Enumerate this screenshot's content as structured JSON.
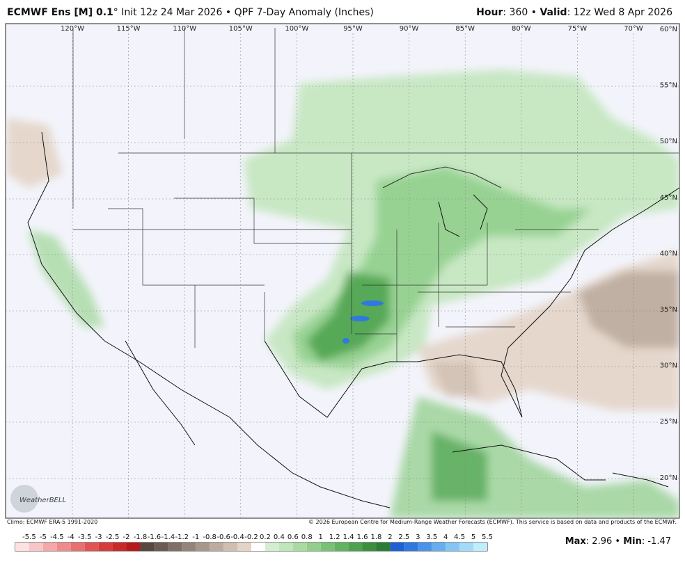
{
  "header": {
    "left_bold": "ECMWF Ens [M] 0.1",
    "left_rest": "° Init 12z 24 Mar 2026 • QPF 7-Day Anomaly (Inches)",
    "right_parts": [
      "Hour",
      ": 360 • ",
      "Valid",
      ": 12z Wed 8 Apr 2026"
    ]
  },
  "map": {
    "longitudes": [
      "120°W",
      "115°W",
      "110°W",
      "105°W",
      "100°W",
      "95°W",
      "90°W",
      "85°W",
      "80°W",
      "75°W",
      "70°W"
    ],
    "latitudes": [
      "60°N",
      "55°N",
      "50°N",
      "45°N",
      "40°N",
      "35°N",
      "30°N",
      "25°N",
      "20°N"
    ],
    "logo": "WeatherBELL"
  },
  "footer": {
    "climo": "Climo: ECMWF ERA-5 1991-2020",
    "copyright": "© 2026 European Centre for Medium-Range Weather Forecasts (ECMWF). This service is based on data and products of the ECMWF."
  },
  "legend": {
    "labels": [
      "-5.5",
      "-5",
      "-4.5",
      "-4",
      "-3.5",
      "-3",
      "-2.5",
      "-2",
      "-1.8",
      "-1.6",
      "-1.4",
      "-1.2",
      "-1",
      "-0.8",
      "-0.6",
      "-0.4",
      "-0.2",
      "0.2",
      "0.4",
      "0.6",
      "0.8",
      "1",
      "1.2",
      "1.4",
      "1.6",
      "1.8",
      "2",
      "2.5",
      "3",
      "3.5",
      "4",
      "4.5",
      "5",
      "5.5"
    ],
    "colors": [
      "#fde2e2",
      "#f9c6c6",
      "#f4a8a8",
      "#ee8c8c",
      "#e87070",
      "#e05454",
      "#d63c3c",
      "#c82a2a",
      "#b31c1c",
      "#574741",
      "#6b5b54",
      "#7f6f67",
      "#94847a",
      "#a8988c",
      "#bcab9e",
      "#cfbeb1",
      "#e3d4c6",
      "#ffffff",
      "#d5eed2",
      "#bfe5ba",
      "#a8daa2",
      "#91cf8b",
      "#79c275",
      "#62b360",
      "#4ca24d",
      "#3b8f3e",
      "#2e7c33",
      "#1f5fd6",
      "#2f78e0",
      "#4a93e8",
      "#66aeee",
      "#84c6f3",
      "#a2dbf7",
      "#c0eefb"
    ]
  },
  "stats": [
    "Max",
    ": 2.96 • ",
    "Min",
    ": -1.47"
  ]
}
